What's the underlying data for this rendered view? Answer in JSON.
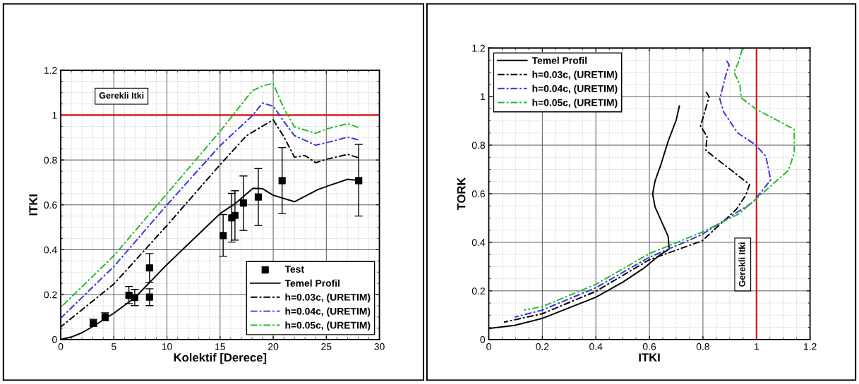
{
  "chart_data": [
    {
      "type": "line",
      "xlabel": "Kolektif [Derece]",
      "ylabel": "ITKI",
      "xlim": [
        0,
        30
      ],
      "xticks": [
        0,
        5,
        10,
        15,
        20,
        25,
        30
      ],
      "ylim": [
        0,
        1.2
      ],
      "yticks": [
        0,
        0.2,
        0.4,
        0.6,
        0.8,
        1,
        1.2
      ],
      "grid": true,
      "legend": "bottom right",
      "ref_lines": [
        {
          "axis": "y",
          "value": 1,
          "label": "Gerekli Itki",
          "color": "#d01010"
        }
      ],
      "series": [
        {
          "name": "Test",
          "type": "scatter",
          "marker": "square",
          "color": "#000000",
          "x": [
            3.07,
            4.18,
            6.42,
            6.97,
            8.36,
            8.36,
            15.29,
            16.1,
            16.4,
            17.2,
            18.6,
            20.84,
            28.05
          ],
          "values": [
            0.073,
            0.1,
            0.197,
            0.187,
            0.319,
            0.189,
            0.463,
            0.542,
            0.553,
            0.608,
            0.635,
            0.708,
            0.708
          ],
          "errors": [
            [
              0.059,
              0.09
            ],
            [
              0.083,
              0.119
            ],
            [
              0.16,
              0.236
            ],
            [
              0.151,
              0.223
            ],
            [
              0.255,
              0.383
            ],
            [
              0.151,
              0.226
            ],
            [
              0.371,
              0.557
            ],
            [
              0.434,
              0.651
            ],
            [
              0.443,
              0.663
            ],
            [
              0.486,
              0.729
            ],
            [
              0.508,
              0.762
            ],
            [
              0.561,
              0.855
            ],
            [
              0.55,
              0.87
            ]
          ]
        },
        {
          "name": "Temel Profil",
          "line_style": "solid",
          "color": "#000000",
          "x": [
            0,
            1,
            2,
            3.07,
            5,
            7,
            10,
            15,
            16.4,
            18.1,
            19,
            20,
            22,
            24.2,
            25.3,
            27,
            28
          ],
          "values": [
            0,
            0.011,
            0.03,
            0.059,
            0.117,
            0.187,
            0.334,
            0.561,
            0.605,
            0.674,
            0.672,
            0.643,
            0.614,
            0.668,
            0.687,
            0.714,
            0.709
          ]
        },
        {
          "name": "h=0.03c, (URETIM)",
          "line_style": "dashdot",
          "color": "#000000",
          "x": [
            0,
            5,
            10,
            15,
            17.5,
            20,
            21,
            22,
            23,
            24,
            25,
            27,
            28
          ],
          "values": [
            0.056,
            0.247,
            0.508,
            0.779,
            0.909,
            0.979,
            0.904,
            0.813,
            0.82,
            0.788,
            0.803,
            0.825,
            0.811
          ]
        },
        {
          "name": "h=0.04c, (URETIM)",
          "line_style": "dashdot",
          "color": "#3333dd",
          "x": [
            0,
            5,
            10,
            15,
            18,
            19,
            20,
            21,
            22,
            24,
            25,
            27,
            28
          ],
          "values": [
            0.095,
            0.325,
            0.6,
            0.864,
            0.996,
            1.054,
            1.04,
            0.972,
            0.909,
            0.866,
            0.877,
            0.902,
            0.89
          ]
        },
        {
          "name": "h=0.05c, (URETIM)",
          "line_style": "dashdot",
          "color": "#22bb22",
          "x": [
            0,
            5,
            10,
            15,
            18,
            19,
            20,
            21,
            22,
            24,
            25,
            27,
            28
          ],
          "values": [
            0.143,
            0.373,
            0.65,
            0.928,
            1.107,
            1.131,
            1.141,
            1.03,
            0.948,
            0.919,
            0.938,
            0.962,
            0.945
          ]
        }
      ]
    },
    {
      "type": "line",
      "xlabel": "ITKI",
      "ylabel": "TORK",
      "xlim": [
        0,
        1.2
      ],
      "xticks": [
        0,
        0.2,
        0.4,
        0.6,
        0.8,
        1,
        1.2
      ],
      "ylim": [
        0,
        1.2
      ],
      "yticks": [
        0,
        0.2,
        0.4,
        0.6,
        0.8,
        1,
        1.2
      ],
      "grid": true,
      "legend": "top left",
      "ref_lines": [
        {
          "axis": "x",
          "value": 1,
          "label": "Gerekli Itki",
          "color": "#d01010"
        }
      ],
      "series": [
        {
          "name": "Temel Profil",
          "line_style": "solid",
          "color": "#000000",
          "x": [
            0,
            0.097,
            0.2,
            0.3,
            0.4,
            0.502,
            0.581,
            0.639,
            0.674,
            0.67,
            0.652,
            0.621,
            0.612,
            0.621,
            0.643,
            0.67,
            0.7,
            0.712
          ],
          "values": [
            0.045,
            0.058,
            0.087,
            0.13,
            0.174,
            0.237,
            0.295,
            0.348,
            0.372,
            0.425,
            0.469,
            0.546,
            0.599,
            0.652,
            0.72,
            0.816,
            0.903,
            0.961
          ]
        },
        {
          "name": "h=0.03c, (URETIM)",
          "line_style": "dashdot",
          "color": "#000000",
          "x": [
            0.057,
            0.2,
            0.4,
            0.599,
            0.797,
            0.925,
            0.96,
            0.974,
            0.811,
            0.815,
            0.791,
            0.808,
            0.823,
            0.812
          ],
          "values": [
            0.071,
            0.106,
            0.198,
            0.328,
            0.406,
            0.536,
            0.594,
            0.638,
            0.778,
            0.836,
            0.879,
            0.942,
            1.0,
            1.019
          ]
        },
        {
          "name": "h=0.04c, (URETIM)",
          "line_style": "dashdot",
          "color": "#3333dd",
          "x": [
            0.097,
            0.2,
            0.4,
            0.599,
            0.793,
            0.938,
            0.987,
            1.053,
            1.035,
            0.996,
            0.93,
            0.877,
            0.863,
            0.885,
            0.898,
            0.889
          ],
          "values": [
            0.092,
            0.121,
            0.213,
            0.338,
            0.43,
            0.531,
            0.565,
            0.657,
            0.754,
            0.802,
            0.85,
            0.937,
            0.99,
            1.087,
            1.13,
            1.147
          ]
        },
        {
          "name": "h=0.05c, (URETIM)",
          "line_style": "dashdot",
          "color": "#22bb22",
          "x": [
            0.132,
            0.2,
            0.4,
            0.599,
            0.793,
            0.934,
            1.0,
            1.119,
            1.141,
            1.141,
            1.0,
            0.943,
            0.938,
            0.916,
            0.934,
            0.947
          ],
          "values": [
            0.121,
            0.135,
            0.227,
            0.353,
            0.44,
            0.517,
            0.58,
            0.696,
            0.768,
            0.865,
            0.947,
            0.995,
            1.048,
            1.101,
            1.145,
            1.198
          ]
        }
      ]
    }
  ]
}
